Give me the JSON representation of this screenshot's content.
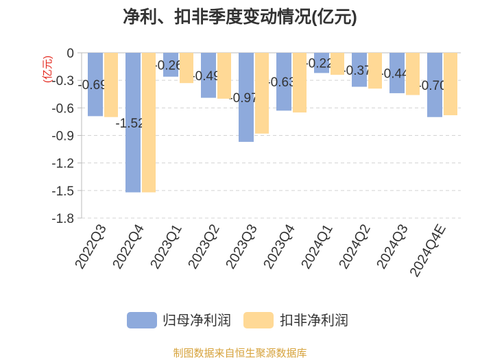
{
  "colors": {
    "series_1": "#8eaadc",
    "series_2": "#ffd996",
    "text": "#333333",
    "axis": "#bbbbbb",
    "grid": "#d3d3d3",
    "unit_label": "#e3261c",
    "footer": "#d6a23b"
  },
  "chart_data": {
    "type": "bar",
    "title": "净利、扣非季度变动情况(亿元)",
    "ylabel": "(亿元)",
    "categories": [
      "2022Q3",
      "2022Q4",
      "2023Q1",
      "2023Q2",
      "2023Q3",
      "2023Q4",
      "2024Q1",
      "2024Q2",
      "2024Q3",
      "2024Q4E"
    ],
    "series": [
      {
        "name": "归母净利润",
        "values": [
          -0.69,
          -1.52,
          -0.26,
          -0.49,
          -0.97,
          -0.63,
          -0.22,
          -0.37,
          -0.44,
          -0.7
        ],
        "labels": [
          "-0.69",
          "-1.52",
          "-0.26",
          "-0.49",
          "-0.97",
          "-0.63",
          "-0.22",
          "-0.37",
          "-0.44",
          "-0.70"
        ]
      },
      {
        "name": "扣非净利润",
        "values": [
          -0.7,
          -1.52,
          -0.33,
          -0.5,
          -0.88,
          -0.65,
          -0.24,
          -0.39,
          -0.46,
          -0.68
        ]
      }
    ],
    "ylim": [
      -1.8,
      0
    ],
    "yticks": [
      0,
      -0.3,
      -0.6,
      -0.9,
      -1.2,
      -1.5,
      -1.8
    ],
    "grid": true,
    "legend_position": "bottom"
  },
  "footer": "制图数据来自恒生聚源数据库"
}
